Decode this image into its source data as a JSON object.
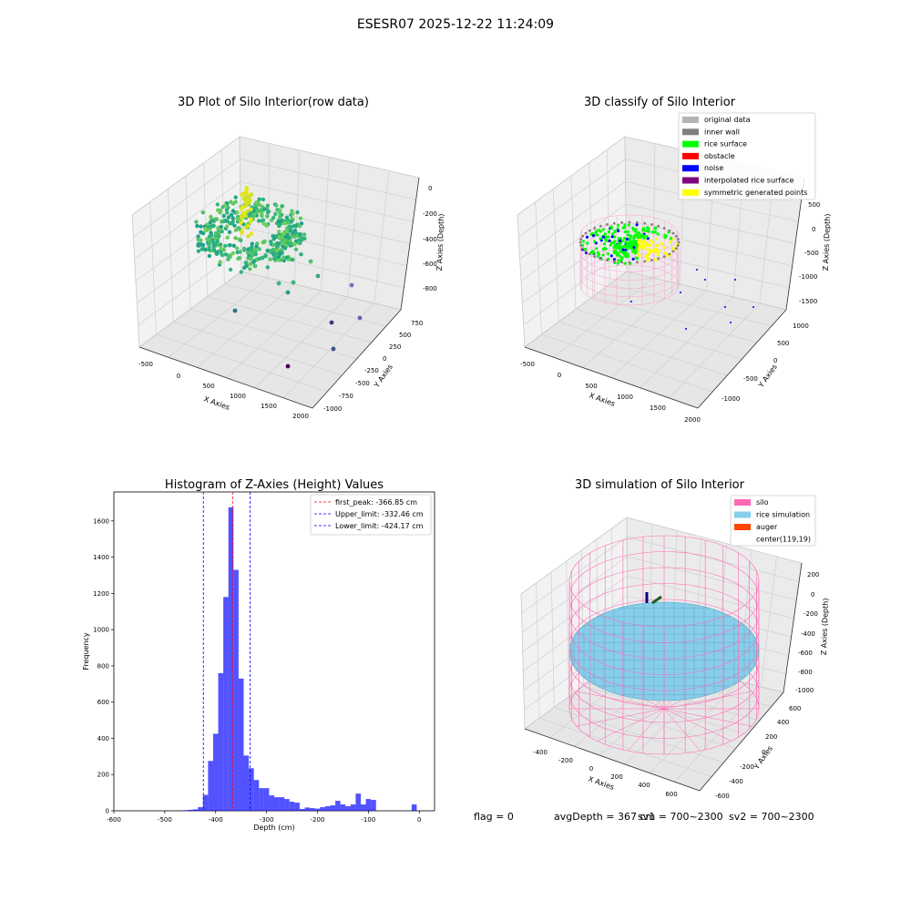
{
  "figure": {
    "suptitle": "ESESR07 2025-12-22 11:24:09",
    "status_line": {
      "flag": "flag = 0",
      "avg_depth": "avgDepth = 367 cm",
      "sv1": "sv1 = 700~2300",
      "sv2": "sv2 = 700~2300"
    }
  },
  "chart_data": [
    {
      "type": "scatter",
      "projection": "3d",
      "title": "3D Plot of Silo Interior(row data)",
      "xlabel": "X Axies",
      "ylabel": "Y Axies",
      "zlabel": "Z Axies (Depth)",
      "x_ticks": [
        "-500",
        "0",
        "500",
        "1000",
        "1500",
        "2000"
      ],
      "y_ticks": [
        "-1000",
        "-750",
        "-500",
        "-250",
        "0",
        "250",
        "500",
        "750"
      ],
      "z_ticks": [
        "-800",
        "-600",
        "-400",
        "-200",
        "0"
      ],
      "grid": true,
      "colormap": "viridis"
    },
    {
      "type": "scatter",
      "projection": "3d",
      "title": "3D classify of Silo Interior",
      "xlabel": "X Axies",
      "ylabel": "Y Axies",
      "zlabel": "Z Axies (Depth)",
      "x_ticks": [
        "-500",
        "0",
        "500",
        "1000",
        "1500",
        "2000"
      ],
      "y_ticks": [
        "-1000",
        "-500",
        "0",
        "500",
        "1000"
      ],
      "z_ticks": [
        "-1500",
        "-1000",
        "-500",
        "0",
        "500"
      ],
      "grid": true,
      "legend_position": "top-right",
      "legend": [
        {
          "label": "original data",
          "color": "#b3b3b3"
        },
        {
          "label": "inner wall",
          "color": "#808080"
        },
        {
          "label": "rice surface",
          "color": "#00ff00"
        },
        {
          "label": "obstacle",
          "color": "#ff0000"
        },
        {
          "label": "noise",
          "color": "#0000ff"
        },
        {
          "label": "interpolated rice surface",
          "color": "#800080"
        },
        {
          "label": "symmetric generated points",
          "color": "#ffff00"
        }
      ]
    },
    {
      "type": "histogram",
      "title": "Histogram of Z-Axies (Height) Values",
      "xlabel": "Depth (cm)",
      "ylabel": "Frequency",
      "xlim": [
        -600,
        30
      ],
      "ylim": [
        0,
        1760
      ],
      "x_ticks": [
        "-600",
        "-500",
        "-400",
        "-300",
        "-200",
        "-100",
        "0"
      ],
      "y_ticks": [
        "0",
        "200",
        "400",
        "600",
        "800",
        "1000",
        "1200",
        "1400",
        "1600"
      ],
      "bar_color": "#0000ff",
      "bar_width": 10,
      "bins": [
        {
          "x": -460,
          "y": 3
        },
        {
          "x": -450,
          "y": 5
        },
        {
          "x": -440,
          "y": 8
        },
        {
          "x": -430,
          "y": 20
        },
        {
          "x": -420,
          "y": 88
        },
        {
          "x": -410,
          "y": 275
        },
        {
          "x": -400,
          "y": 425
        },
        {
          "x": -390,
          "y": 760
        },
        {
          "x": -380,
          "y": 1180
        },
        {
          "x": -370,
          "y": 1675
        },
        {
          "x": -360,
          "y": 1330
        },
        {
          "x": -350,
          "y": 730
        },
        {
          "x": -340,
          "y": 305
        },
        {
          "x": -330,
          "y": 235
        },
        {
          "x": -320,
          "y": 170
        },
        {
          "x": -310,
          "y": 125
        },
        {
          "x": -300,
          "y": 125
        },
        {
          "x": -290,
          "y": 85
        },
        {
          "x": -280,
          "y": 75
        },
        {
          "x": -270,
          "y": 75
        },
        {
          "x": -260,
          "y": 65
        },
        {
          "x": -250,
          "y": 50
        },
        {
          "x": -240,
          "y": 45
        },
        {
          "x": -230,
          "y": 10
        },
        {
          "x": -220,
          "y": 18
        },
        {
          "x": -210,
          "y": 15
        },
        {
          "x": -200,
          "y": 12
        },
        {
          "x": -190,
          "y": 20
        },
        {
          "x": -180,
          "y": 25
        },
        {
          "x": -170,
          "y": 30
        },
        {
          "x": -160,
          "y": 55
        },
        {
          "x": -150,
          "y": 35
        },
        {
          "x": -140,
          "y": 25
        },
        {
          "x": -130,
          "y": 35
        },
        {
          "x": -120,
          "y": 95
        },
        {
          "x": -110,
          "y": 35
        },
        {
          "x": -100,
          "y": 65
        },
        {
          "x": -90,
          "y": 60
        },
        {
          "x": -10,
          "y": 35
        }
      ],
      "vlines": [
        {
          "label": "first_peak: -366.85 cm",
          "x": -366.85,
          "color": "#ff0000"
        },
        {
          "label": "Upper_limit: -332.46 cm",
          "x": -332.46,
          "color": "#0000ff"
        },
        {
          "label": "Lower_limit: -424.17 cm",
          "x": -424.17,
          "color": "#0000ff"
        }
      ],
      "legend_position": "top-right"
    },
    {
      "type": "surface",
      "projection": "3d",
      "title": "3D simulation of Silo Interior",
      "xlabel": "X Axies",
      "ylabel": "Y Axies",
      "zlabel": "Z Axies (Depth)",
      "x_ticks": [
        "-400",
        "-200",
        "0",
        "200",
        "400",
        "600"
      ],
      "y_ticks": [
        "-600",
        "-400",
        "-200",
        "0",
        "200",
        "400",
        "600"
      ],
      "z_ticks": [
        "-1000",
        "-800",
        "-600",
        "-400",
        "-200",
        "0",
        "200"
      ],
      "grid": true,
      "legend_position": "top-right",
      "legend": [
        {
          "label": "silo",
          "color": "#ff69b4"
        },
        {
          "label": "rice simulation",
          "color": "#87ceeb"
        },
        {
          "label": "auger",
          "color": "#ff4500"
        },
        {
          "label": "center(119,19)",
          "color": ""
        }
      ]
    }
  ]
}
